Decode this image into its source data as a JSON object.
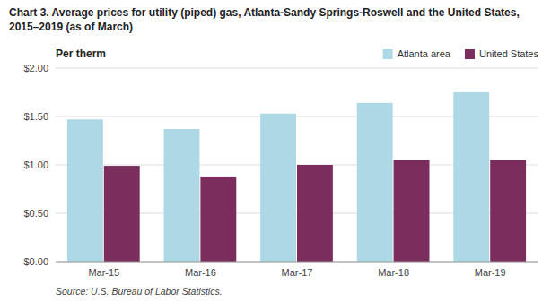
{
  "chart_data": {
    "type": "bar",
    "title": "Chart 3.  Average prices for utility (piped) gas, Atlanta-Sandy Springs-Roswell and the United States, 2015–2019 (as of March)",
    "ylabel": "Per therm",
    "source": "Source: U.S. Bureau of Labor Statistics.",
    "categories": [
      "Mar-15",
      "Mar-16",
      "Mar-17",
      "Mar-18",
      "Mar-19"
    ],
    "series": [
      {
        "name": "Atlanta area",
        "color": "#ADD8E6",
        "values": [
          1.47,
          1.37,
          1.53,
          1.64,
          1.75
        ]
      },
      {
        "name": "United States",
        "color": "#7B2D5E",
        "values": [
          0.99,
          0.88,
          1.0,
          1.05,
          1.05
        ]
      }
    ],
    "ylim": [
      0.0,
      2.0
    ],
    "yticks": [
      {
        "value": 0.0,
        "label": "$0.00"
      },
      {
        "value": 0.5,
        "label": "$0.50"
      },
      {
        "value": 1.0,
        "label": "$1.00"
      },
      {
        "value": 1.5,
        "label": "$1.50"
      },
      {
        "value": 2.0,
        "label": "$2.00"
      }
    ],
    "grid": true,
    "legend": "top"
  }
}
